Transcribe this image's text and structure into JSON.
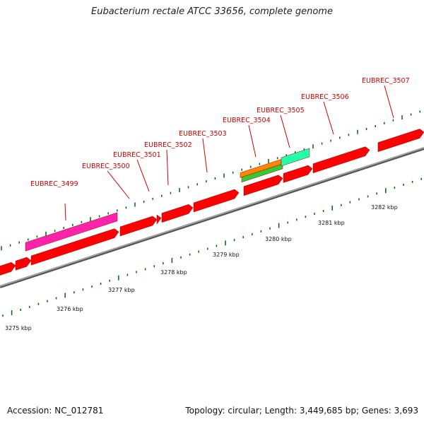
{
  "title": "Eubacterium rectale ATCC 33656, complete genome",
  "footer": {
    "accession": "Accession: NC_012781",
    "summary": "Topology: circular; Length: 3,449,685 bp; Genes: 3,693"
  },
  "scale_labels": [
    "3275 kbp",
    "3276 kbp",
    "3277 kbp",
    "3278 kbp",
    "3279 kbp",
    "3280 kbp",
    "3281 kbp",
    "3282 kbp"
  ],
  "gene_labels": [
    "EUBREC_3499",
    "EUBREC_3500",
    "EUBREC_3501",
    "EUBREC_3502",
    "EUBREC_3503",
    "EUBREC_3504",
    "EUBREC_3505",
    "EUBREC_3506",
    "EUBREC_3507"
  ],
  "colors": {
    "cds": "#ff0000",
    "highlight_gene": "#ff22aa",
    "rna_orange": "#ff8800",
    "rna_green": "#33cc33",
    "rna_cyan": "#22ffaa",
    "backbone": "#888888",
    "tick": "#006600",
    "label": "#cc0000"
  }
}
